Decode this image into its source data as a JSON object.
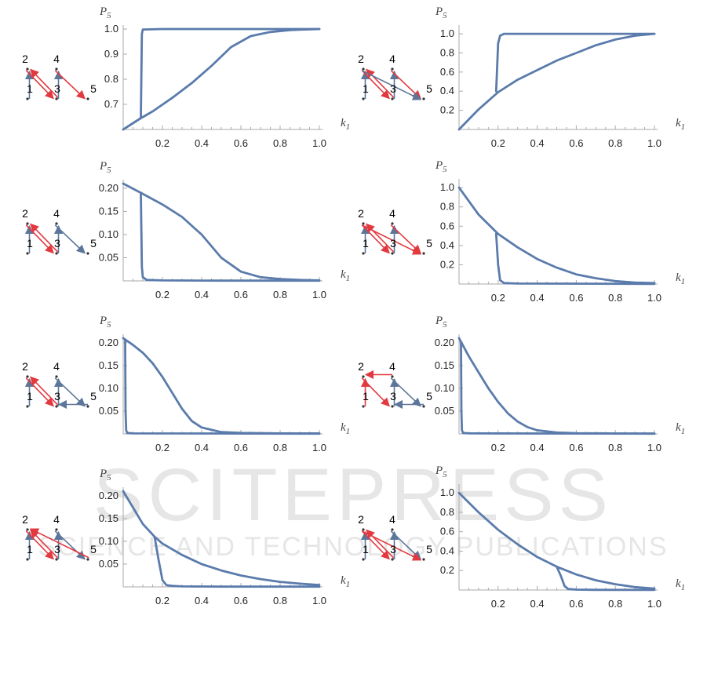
{
  "colors": {
    "curve": "#5a7bab",
    "axis": "#aaaaaa",
    "red": "#e2393f",
    "blue": "#5c7699",
    "watermark": "#e8e8e8"
  },
  "watermark": {
    "line1": "SCITEPRESS",
    "line2": "SCIENCE AND TECHNOLOGY PUBLICATIONS"
  },
  "chart_data": [
    {
      "type": "line",
      "ylabel": "P5",
      "xlabel": "k1",
      "xlim": [
        0,
        1
      ],
      "ylim": [
        0.6,
        1.0
      ],
      "xticks": [
        "0.2",
        "0.4",
        "0.6",
        "0.8",
        "1.0"
      ],
      "yticks": [
        "0.7",
        "0.8",
        "0.9",
        "1.0"
      ],
      "ytick_values": [
        0.7,
        0.8,
        0.9,
        1.0
      ],
      "graph_labels": [
        "1",
        "2",
        "3",
        "4",
        "5"
      ],
      "series": [
        {
          "x": [
            0,
            0.04,
            0.09,
            0.095,
            0.1,
            0.2,
            1.0
          ],
          "y": [
            0.6,
            0.62,
            0.645,
            0.98,
            0.998,
            1.0,
            1.0
          ]
        },
        {
          "x": [
            0,
            0.09,
            0.15,
            0.25,
            0.35,
            0.45,
            0.55,
            0.65,
            0.75,
            0.85,
            1.0
          ],
          "y": [
            0.6,
            0.645,
            0.672,
            0.726,
            0.785,
            0.853,
            0.928,
            0.972,
            0.988,
            0.996,
            1.0
          ]
        }
      ],
      "graph": {
        "edges": [
          {
            "f": "1",
            "t": "2",
            "c": "blue"
          },
          {
            "f": "2",
            "t": "3",
            "c": "red"
          },
          {
            "f": "3",
            "t": "2",
            "c": "red"
          },
          {
            "f": "3",
            "t": "4",
            "c": "blue"
          },
          {
            "f": "4",
            "t": "5",
            "c": "red"
          }
        ]
      }
    },
    {
      "type": "line",
      "ylabel": "P5",
      "xlabel": "k1",
      "xlim": [
        0,
        1
      ],
      "ylim": [
        0,
        1.05
      ],
      "xticks": [
        "0.2",
        "0.4",
        "0.6",
        "0.8",
        "1.0"
      ],
      "yticks": [
        "0.2",
        "0.4",
        "0.6",
        "0.8",
        "1.0"
      ],
      "ytick_values": [
        0.2,
        0.4,
        0.6,
        0.8,
        1.0
      ],
      "graph_labels": [
        "1",
        "2",
        "3",
        "4",
        "5"
      ],
      "series": [
        {
          "x": [
            0,
            0.1,
            0.2,
            0.3,
            0.4,
            0.5,
            0.6,
            0.7,
            0.8,
            0.9,
            1.0
          ],
          "y": [
            0,
            0.21,
            0.39,
            0.52,
            0.62,
            0.72,
            0.8,
            0.88,
            0.94,
            0.98,
            1.0
          ]
        },
        {
          "x": [
            0.19,
            0.2,
            0.21,
            0.23,
            0.3,
            1.0
          ],
          "y": [
            0.4,
            0.9,
            0.98,
            1.0,
            1.0,
            1.0
          ]
        }
      ],
      "graph": {
        "edges": [
          {
            "f": "1",
            "t": "2",
            "c": "blue"
          },
          {
            "f": "2",
            "t": "3",
            "c": "red"
          },
          {
            "f": "3",
            "t": "2",
            "c": "red"
          },
          {
            "f": "3",
            "t": "4",
            "c": "blue"
          },
          {
            "f": "4",
            "t": "5",
            "c": "red"
          },
          {
            "f": "2",
            "t": "5",
            "c": "blue"
          }
        ]
      }
    },
    {
      "type": "line",
      "ylabel": "P5",
      "xlabel": "k1",
      "xlim": [
        0,
        1
      ],
      "ylim": [
        0,
        0.21
      ],
      "xticks": [
        "0.2",
        "0.4",
        "0.6",
        "0.8",
        "1.0"
      ],
      "yticks": [
        "0.05",
        "0.10",
        "0.15",
        "0.20"
      ],
      "ytick_values": [
        0.05,
        0.1,
        0.15,
        0.2
      ],
      "graph_labels": [
        "1",
        "2",
        "3",
        "4",
        "5"
      ],
      "series": [
        {
          "x": [
            0,
            0.09,
            0.2,
            0.3,
            0.4,
            0.5,
            0.6,
            0.7,
            0.8,
            0.9,
            1.0
          ],
          "y": [
            0.21,
            0.19,
            0.165,
            0.138,
            0.1,
            0.05,
            0.02,
            0.008,
            0.004,
            0.002,
            0.001
          ]
        },
        {
          "x": [
            0.09,
            0.095,
            0.1,
            0.12,
            0.2,
            0.5,
            1.0
          ],
          "y": [
            0.188,
            0.03,
            0.008,
            0.002,
            0.001,
            0.0005,
            0.0005
          ]
        }
      ],
      "graph": {
        "edges": [
          {
            "f": "1",
            "t": "2",
            "c": "blue"
          },
          {
            "f": "2",
            "t": "3",
            "c": "red"
          },
          {
            "f": "3",
            "t": "2",
            "c": "red"
          },
          {
            "f": "3",
            "t": "4",
            "c": "blue"
          },
          {
            "f": "4",
            "t": "5",
            "c": "blue"
          }
        ]
      }
    },
    {
      "type": "line",
      "ylabel": "P5",
      "xlabel": "k1",
      "xlim": [
        0,
        1
      ],
      "ylim": [
        0,
        1.05
      ],
      "xticks": [
        "0.2",
        "0.4",
        "0.6",
        "0.8",
        "1.0"
      ],
      "yticks": [
        "0.2",
        "0.4",
        "0.6",
        "0.8",
        "1.0"
      ],
      "ytick_values": [
        0.2,
        0.4,
        0.6,
        0.8,
        1.0
      ],
      "graph_labels": [
        "1",
        "2",
        "3",
        "4",
        "5"
      ],
      "series": [
        {
          "x": [
            0,
            0.1,
            0.2,
            0.3,
            0.4,
            0.5,
            0.6,
            0.7,
            0.8,
            0.9,
            1.0
          ],
          "y": [
            1.0,
            0.72,
            0.52,
            0.38,
            0.26,
            0.17,
            0.1,
            0.06,
            0.03,
            0.015,
            0.01
          ]
        },
        {
          "x": [
            0.19,
            0.2,
            0.21,
            0.23,
            0.3,
            1.0
          ],
          "y": [
            0.52,
            0.2,
            0.04,
            0.01,
            0.005,
            0.002
          ]
        }
      ],
      "graph": {
        "edges": [
          {
            "f": "1",
            "t": "2",
            "c": "blue"
          },
          {
            "f": "2",
            "t": "3",
            "c": "red"
          },
          {
            "f": "3",
            "t": "2",
            "c": "red"
          },
          {
            "f": "3",
            "t": "4",
            "c": "blue"
          },
          {
            "f": "4",
            "t": "5",
            "c": "red"
          },
          {
            "f": "2",
            "t": "5",
            "c": "red"
          }
        ]
      }
    },
    {
      "type": "line",
      "ylabel": "P5",
      "xlabel": "k1",
      "xlim": [
        0,
        1
      ],
      "ylim": [
        0,
        0.21
      ],
      "xticks": [
        "0.2",
        "0.4",
        "0.6",
        "0.8",
        "1.0"
      ],
      "yticks": [
        "0.05",
        "0.10",
        "0.15",
        "0.20"
      ],
      "ytick_values": [
        0.05,
        0.1,
        0.15,
        0.2
      ],
      "graph_labels": [
        "1",
        "2",
        "3",
        "4",
        "5"
      ],
      "series": [
        {
          "x": [
            0,
            0.05,
            0.1,
            0.15,
            0.2,
            0.25,
            0.3,
            0.35,
            0.4,
            0.5,
            0.6,
            0.8,
            1.0
          ],
          "y": [
            0.21,
            0.195,
            0.178,
            0.155,
            0.125,
            0.09,
            0.055,
            0.028,
            0.014,
            0.004,
            0.002,
            0.001,
            0.001
          ]
        },
        {
          "x": [
            0.01,
            0.012,
            0.015,
            0.02,
            0.05,
            1.0
          ],
          "y": [
            0.205,
            0.05,
            0.008,
            0.002,
            0.001,
            0.0005
          ]
        }
      ],
      "graph": {
        "edges": [
          {
            "f": "1",
            "t": "2",
            "c": "blue"
          },
          {
            "f": "2",
            "t": "3",
            "c": "red"
          },
          {
            "f": "3",
            "t": "2",
            "c": "red"
          },
          {
            "f": "3",
            "t": "4",
            "c": "blue"
          },
          {
            "f": "4",
            "t": "5",
            "c": "blue"
          },
          {
            "f": "5",
            "t": "3",
            "c": "blue"
          }
        ]
      }
    },
    {
      "type": "line",
      "ylabel": "P5",
      "xlabel": "k1",
      "xlim": [
        0,
        1
      ],
      "ylim": [
        0,
        0.21
      ],
      "xticks": [
        "0.2",
        "0.4",
        "0.6",
        "0.8",
        "1.0"
      ],
      "yticks": [
        "0.05",
        "0.10",
        "0.15",
        "0.20"
      ],
      "ytick_values": [
        0.05,
        0.1,
        0.15,
        0.2
      ],
      "graph_labels": [
        "1",
        "2",
        "3",
        "4",
        "5"
      ],
      "series": [
        {
          "x": [
            0,
            0.05,
            0.1,
            0.15,
            0.2,
            0.25,
            0.3,
            0.35,
            0.4,
            0.5,
            0.6,
            0.8,
            1.0
          ],
          "y": [
            0.21,
            0.17,
            0.135,
            0.1,
            0.07,
            0.045,
            0.027,
            0.015,
            0.008,
            0.003,
            0.0015,
            0.0008,
            0.0005
          ]
        },
        {
          "x": [
            0.01,
            0.012,
            0.015,
            0.02,
            0.05,
            1.0
          ],
          "y": [
            0.2,
            0.05,
            0.008,
            0.002,
            0.001,
            0.0005
          ]
        }
      ],
      "graph": {
        "edges": [
          {
            "f": "1",
            "t": "2",
            "c": "red"
          },
          {
            "f": "4",
            "t": "2",
            "c": "red"
          },
          {
            "f": "2",
            "t": "3",
            "c": "red"
          },
          {
            "f": "3",
            "t": "4",
            "c": "blue"
          },
          {
            "f": "4",
            "t": "5",
            "c": "blue"
          },
          {
            "f": "5",
            "t": "3",
            "c": "blue"
          }
        ]
      }
    },
    {
      "type": "line",
      "ylabel": "P5",
      "xlabel": "k1",
      "xlim": [
        0,
        1
      ],
      "ylim": [
        0,
        0.21
      ],
      "xticks": [
        "0.2",
        "0.4",
        "0.6",
        "0.8",
        "1.0"
      ],
      "yticks": [
        "0.05",
        "0.10",
        "0.15",
        "0.20"
      ],
      "ytick_values": [
        0.05,
        0.1,
        0.15,
        0.2
      ],
      "graph_labels": [
        "1",
        "2",
        "3",
        "4",
        "5"
      ],
      "series": [
        {
          "x": [
            0,
            0.1,
            0.16,
            0.2,
            0.3,
            0.4,
            0.5,
            0.6,
            0.7,
            0.8,
            0.9,
            1.0
          ],
          "y": [
            0.21,
            0.138,
            0.11,
            0.095,
            0.07,
            0.05,
            0.036,
            0.025,
            0.017,
            0.011,
            0.007,
            0.004
          ]
        },
        {
          "x": [
            0.16,
            0.18,
            0.2,
            0.22,
            0.25,
            0.3,
            0.5,
            1.0
          ],
          "y": [
            0.11,
            0.06,
            0.015,
            0.004,
            0.002,
            0.001,
            0.0005,
            0.0005
          ]
        }
      ],
      "graph": {
        "edges": [
          {
            "f": "1",
            "t": "2",
            "c": "blue"
          },
          {
            "f": "3",
            "t": "2",
            "c": "red"
          },
          {
            "f": "2",
            "t": "3",
            "c": "red"
          },
          {
            "f": "3",
            "t": "4",
            "c": "blue"
          },
          {
            "f": "4",
            "t": "5",
            "c": "blue"
          },
          {
            "f": "5",
            "t": "2",
            "c": "red"
          }
        ]
      }
    },
    {
      "type": "line",
      "ylabel": "P5",
      "xlabel": "k1",
      "xlim": [
        0,
        1
      ],
      "ylim": [
        0,
        1.05
      ],
      "xticks": [
        "0.2",
        "0.4",
        "0.6",
        "0.8",
        "1.0"
      ],
      "yticks": [
        "0.2",
        "0.4",
        "0.6",
        "0.8",
        "1.0"
      ],
      "ytick_values": [
        0.2,
        0.4,
        0.6,
        0.8,
        1.0
      ],
      "graph_labels": [
        "1",
        "2",
        "3",
        "4",
        "5"
      ],
      "series": [
        {
          "x": [
            0,
            0.1,
            0.2,
            0.3,
            0.4,
            0.5,
            0.6,
            0.7,
            0.8,
            0.9,
            1.0
          ],
          "y": [
            1.0,
            0.8,
            0.62,
            0.47,
            0.34,
            0.24,
            0.16,
            0.1,
            0.06,
            0.03,
            0.015
          ]
        },
        {
          "x": [
            0.5,
            0.52,
            0.54,
            0.56,
            0.6,
            0.7,
            1.0
          ],
          "y": [
            0.24,
            0.15,
            0.04,
            0.01,
            0.004,
            0.002,
            0.001
          ]
        }
      ],
      "graph": {
        "edges": [
          {
            "f": "1",
            "t": "2",
            "c": "blue"
          },
          {
            "f": "2",
            "t": "3",
            "c": "red"
          },
          {
            "f": "3",
            "t": "2",
            "c": "red"
          },
          {
            "f": "3",
            "t": "4",
            "c": "blue"
          },
          {
            "f": "4",
            "t": "5",
            "c": "blue"
          },
          {
            "f": "2",
            "t": "5",
            "c": "red"
          }
        ]
      }
    }
  ]
}
